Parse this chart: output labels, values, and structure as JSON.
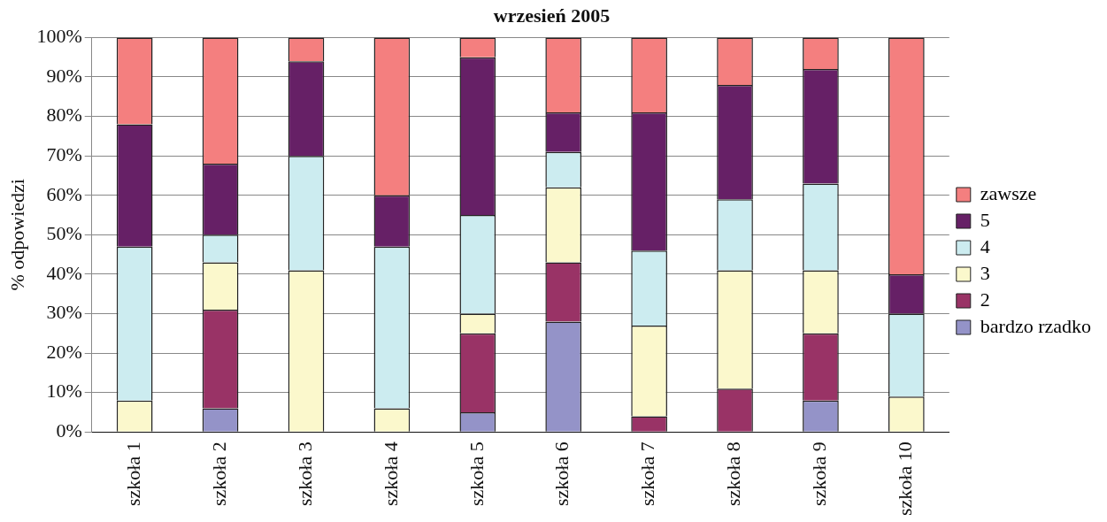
{
  "chart_data": {
    "type": "bar",
    "title": "wrzesień 2005",
    "ylabel": "% odpowiedzi",
    "stacked": true,
    "grid": "y",
    "legend": "right",
    "categories": [
      "szkoła 1",
      "szkoła 2",
      "szkoła 3",
      "szkoła 4",
      "szkoła 5",
      "szkoła 6",
      "szkoła 7",
      "szkoła 8",
      "szkoła 9",
      "szkoła 10"
    ],
    "ylim": [
      0,
      100
    ],
    "yticks": [
      {
        "value": 0,
        "label": "0%"
      },
      {
        "value": 10,
        "label": "10%"
      },
      {
        "value": 20,
        "label": "20%"
      },
      {
        "value": 30,
        "label": "30%"
      },
      {
        "value": 40,
        "label": "40%"
      },
      {
        "value": 50,
        "label": "50%"
      },
      {
        "value": 60,
        "label": "60%"
      },
      {
        "value": 70,
        "label": "70%"
      },
      {
        "value": 80,
        "label": "80%"
      },
      {
        "value": 90,
        "label": "90%"
      },
      {
        "value": 100,
        "label": "100%"
      }
    ],
    "series": [
      {
        "name": "bardzo rzadko",
        "color": "#9493c8",
        "values": [
          0,
          6,
          0,
          0,
          5,
          28,
          0,
          0,
          8,
          0
        ]
      },
      {
        "name": "2",
        "color": "#993366",
        "values": [
          0,
          25,
          0,
          0,
          20,
          15,
          4,
          11,
          17,
          0
        ]
      },
      {
        "name": "3",
        "color": "#fbf8cc",
        "values": [
          8,
          12,
          41,
          6,
          5,
          19,
          23,
          30,
          16,
          9
        ]
      },
      {
        "name": "4",
        "color": "#ccecf0",
        "values": [
          39,
          7,
          29,
          41,
          25,
          9,
          19,
          18,
          22,
          21
        ]
      },
      {
        "name": "5",
        "color": "#662066",
        "values": [
          31,
          18,
          24,
          13,
          40,
          10,
          35,
          29,
          29,
          10
        ]
      },
      {
        "name": "zawsze",
        "color": "#f47f7f",
        "values": [
          22,
          32,
          6,
          40,
          5,
          19,
          19,
          12,
          8,
          60
        ]
      }
    ]
  }
}
